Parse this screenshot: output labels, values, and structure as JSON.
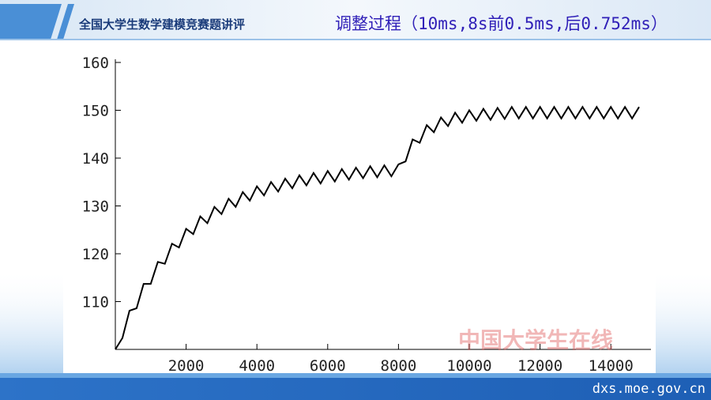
{
  "header": {
    "course": "全国大学生数学建模竞赛题讲评",
    "title": "调整过程（10ms,8s前0.5ms,后0.752ms）"
  },
  "watermark": "中国大学生在线",
  "footer": "dxs.moe.gov.cn",
  "chart_data": {
    "type": "line",
    "color": "#000000",
    "x": [
      0,
      200,
      400,
      600,
      800,
      1000,
      1200,
      1400,
      1600,
      1800,
      2000,
      2200,
      2400,
      2600,
      2800,
      3000,
      3200,
      3400,
      3600,
      3800,
      4000,
      4200,
      4400,
      4600,
      4800,
      5000,
      5200,
      5400,
      5600,
      5800,
      6000,
      6200,
      6400,
      6600,
      6800,
      7000,
      7200,
      7400,
      7600,
      7800,
      8000,
      8200,
      8400,
      8600,
      8800,
      9000,
      9200,
      9400,
      9600,
      9800,
      10000,
      10200,
      10400,
      10600,
      10800,
      11000,
      11200,
      11400,
      11600,
      11800,
      12000,
      12200,
      12400,
      12600,
      12800,
      13000,
      13200,
      13400,
      13600,
      13800,
      14000,
      14200,
      14400,
      14600,
      14800
    ],
    "values": [
      100,
      102.4,
      108.1,
      108.6,
      113.7,
      113.7,
      118.3,
      117.9,
      122.1,
      121.3,
      125.2,
      124.1,
      127.8,
      126.4,
      129.8,
      128.3,
      131.5,
      129.8,
      132.9,
      131.1,
      134.1,
      132.2,
      135.0,
      133.0,
      135.7,
      133.7,
      136.4,
      134.3,
      136.9,
      134.7,
      137.3,
      135.1,
      137.7,
      135.5,
      138.0,
      135.8,
      138.3,
      136.0,
      138.5,
      136.2,
      138.7,
      139.3,
      143.9,
      143.2,
      146.9,
      145.4,
      148.5,
      146.7,
      149.5,
      147.4,
      150.0,
      147.8,
      150.3,
      148.0,
      150.5,
      148.2,
      150.7,
      148.3,
      150.7,
      148.3,
      150.7,
      148.3,
      150.7,
      148.3,
      150.7,
      148.3,
      150.7,
      148.3,
      150.7,
      148.3,
      150.7,
      148.3,
      150.7,
      148.3,
      150.7
    ],
    "xlim": [
      0,
      15000
    ],
    "xticks": [
      2000,
      4000,
      6000,
      8000,
      10000,
      12000,
      14000
    ],
    "ylim": [
      100,
      160
    ],
    "yticks": [
      110,
      120,
      130,
      140,
      150,
      160
    ]
  }
}
